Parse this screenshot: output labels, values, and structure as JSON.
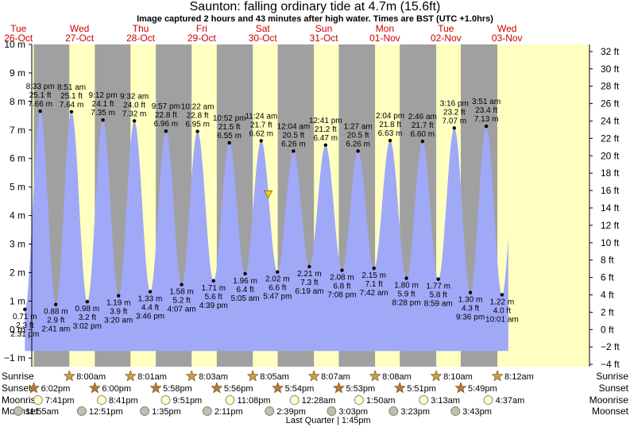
{
  "title": "Saunton: falling  ordinary tide at 4.7m (15.6ft)",
  "subtitle": "Image captured 2 hours and 43 minutes after high water. Times are BST (UTC +1.0hrs)",
  "colors": {
    "day": "#ffffc0",
    "night": "#a0a0a0",
    "water": "#a0a8f8",
    "day_label": "#cc0000",
    "sun_star": "#c8a040",
    "sunset_star": "#b87838",
    "moonrise": "#ffffc8",
    "moonset": "#c0c0b0"
  },
  "chart_data": {
    "type": "area",
    "ylabel_left": "m",
    "ylabel_right": "ft",
    "y_left_ticks": [
      "10 m",
      "9 m",
      "8 m",
      "7 m",
      "6 m",
      "5 m",
      "4 m",
      "3 m",
      "2 m",
      "1 m",
      "0 m",
      "−1 m"
    ],
    "y_right_ticks": [
      "32 ft",
      "30 ft",
      "28 ft",
      "26 ft",
      "24 ft",
      "22 ft",
      "20 ft",
      "18 ft",
      "16 ft",
      "14 ft",
      "12 ft",
      "10 ft",
      "8 ft",
      "6 ft",
      "4 ft",
      "2 ft",
      "0 ft",
      "−2 ft",
      "−4 ft"
    ],
    "ylim": [
      -1.3,
      10
    ],
    "days": [
      {
        "dow": "Tue",
        "date": "26-Oct"
      },
      {
        "dow": "Wed",
        "date": "27-Oct"
      },
      {
        "dow": "Thu",
        "date": "28-Oct"
      },
      {
        "dow": "Fri",
        "date": "29-Oct"
      },
      {
        "dow": "Sat",
        "date": "30-Oct"
      },
      {
        "dow": "Sun",
        "date": "31-Oct"
      },
      {
        "dow": "Mon",
        "date": "01-Nov"
      },
      {
        "dow": "Tue",
        "date": "02-Nov"
      },
      {
        "dow": "Wed",
        "date": "03-Nov"
      }
    ],
    "tides": [
      {
        "kind": "low",
        "time": "2:31 pm",
        "m": 0.71,
        "ft": "2.3 ft",
        "label_m": "0.71 m"
      },
      {
        "kind": "high",
        "time": "8:33 pm",
        "m": 7.66,
        "ft": "25.1 ft",
        "label_m": "7.66 m"
      },
      {
        "kind": "low",
        "time": "2:41 am",
        "m": 0.88,
        "ft": "2.9 ft",
        "label_m": "0.88 m"
      },
      {
        "kind": "high",
        "time": "8:51 am",
        "m": 7.64,
        "ft": "25.1 ft",
        "label_m": "7.64 m"
      },
      {
        "kind": "low",
        "time": "3:02 pm",
        "m": 0.98,
        "ft": "3.2 ft",
        "label_m": "0.98 m"
      },
      {
        "kind": "high",
        "time": "9:12 pm",
        "m": 7.35,
        "ft": "24.1 ft",
        "label_m": "7.35 m"
      },
      {
        "kind": "low",
        "time": "3:20 am",
        "m": 1.19,
        "ft": "3.9 ft",
        "label_m": "1.19 m"
      },
      {
        "kind": "high",
        "time": "9:32 am",
        "m": 7.32,
        "ft": "24.0 ft",
        "label_m": "7.32 m"
      },
      {
        "kind": "low",
        "time": "3:46 pm",
        "m": 1.33,
        "ft": "4.4 ft",
        "label_m": "1.33 m"
      },
      {
        "kind": "high",
        "time": "9:57 pm",
        "m": 6.96,
        "ft": "22.8 ft",
        "label_m": "6.96 m"
      },
      {
        "kind": "low",
        "time": "4:07 am",
        "m": 1.58,
        "ft": "5.2 ft",
        "label_m": "1.58 m"
      },
      {
        "kind": "high",
        "time": "10:22 am",
        "m": 6.95,
        "ft": "22.8 ft",
        "label_m": "6.95 m"
      },
      {
        "kind": "low",
        "time": "4:39 pm",
        "m": 1.71,
        "ft": "5.6 ft",
        "label_m": "1.71 m"
      },
      {
        "kind": "high",
        "time": "10:52 pm",
        "m": 6.55,
        "ft": "21.5 ft",
        "label_m": "6.55 m"
      },
      {
        "kind": "low",
        "time": "5:05 am",
        "m": 1.96,
        "ft": "6.4 ft",
        "label_m": "1.96 m"
      },
      {
        "kind": "high",
        "time": "11:24 am",
        "m": 6.62,
        "ft": "21.7 ft",
        "label_m": "6.62 m"
      },
      {
        "kind": "low",
        "time": "5:47 pm",
        "m": 2.02,
        "ft": "6.6 ft",
        "label_m": "2.02 m"
      },
      {
        "kind": "high",
        "time": "12:04 am",
        "m": 6.26,
        "ft": "20.5 ft",
        "label_m": "6.26 m"
      },
      {
        "kind": "low",
        "time": "6:19 am",
        "m": 2.21,
        "ft": "7.3 ft",
        "label_m": "2.21 m"
      },
      {
        "kind": "high",
        "time": "12:41 pm",
        "m": 6.47,
        "ft": "21.2 ft",
        "label_m": "6.47 m"
      },
      {
        "kind": "low",
        "time": "7:08 pm",
        "m": 2.08,
        "ft": "6.8 ft",
        "label_m": "2.08 m"
      },
      {
        "kind": "high",
        "time": "1:27 am",
        "m": 6.26,
        "ft": "20.5 ft",
        "label_m": "6.26 m"
      },
      {
        "kind": "low",
        "time": "7:42 am",
        "m": 2.15,
        "ft": "7.1 ft",
        "label_m": "2.15 m"
      },
      {
        "kind": "high",
        "time": "2:04 pm",
        "m": 6.63,
        "ft": "21.8 ft",
        "label_m": "6.63 m"
      },
      {
        "kind": "low",
        "time": "8:28 pm",
        "m": 1.8,
        "ft": "5.9 ft",
        "label_m": "1.80 m"
      },
      {
        "kind": "high",
        "time": "2:46 am",
        "m": 6.6,
        "ft": "21.7 ft",
        "label_m": "6.60 m"
      },
      {
        "kind": "low",
        "time": "8:59 am",
        "m": 1.77,
        "ft": "5.8 ft",
        "label_m": "1.77 m"
      },
      {
        "kind": "high",
        "time": "3:16 pm",
        "m": 7.07,
        "ft": "23.2 ft",
        "label_m": "7.07 m"
      },
      {
        "kind": "low",
        "time": "9:36 pm",
        "m": 1.3,
        "ft": "4.3 ft",
        "label_m": "1.30 m"
      },
      {
        "kind": "high",
        "time": "3:51 am",
        "m": 7.13,
        "ft": "23.4 ft",
        "label_m": "7.13 m"
      },
      {
        "kind": "low",
        "time": "10:01 am",
        "m": 1.22,
        "ft": "4.0 ft",
        "label_m": "1.22 m"
      }
    ],
    "current_level_m": 4.7
  },
  "astro": {
    "row_labels": [
      "Sunrise",
      "Sunset",
      "Moonrise",
      "Moonset"
    ],
    "sunrise": [
      "8:00am",
      "8:01am",
      "8:03am",
      "8:05am",
      "8:07am",
      "8:08am",
      "8:10am",
      "8:12am"
    ],
    "sunset": [
      "6:02pm",
      "6:00pm",
      "5:58pm",
      "5:56pm",
      "5:54pm",
      "5:53pm",
      "5:51pm",
      "5:49pm"
    ],
    "moonrise": [
      "7:41pm",
      "8:41pm",
      "9:51pm",
      "11:08pm",
      "12:28am",
      "1:50am",
      "3:13am",
      "4:37am"
    ],
    "moonset": [
      "11:55am",
      "12:51pm",
      "1:35pm",
      "2:11pm",
      "2:39pm",
      "3:03pm",
      "3:23pm",
      "3:43pm"
    ],
    "moon_phase_note": "Last Quarter | 1:45pm"
  }
}
